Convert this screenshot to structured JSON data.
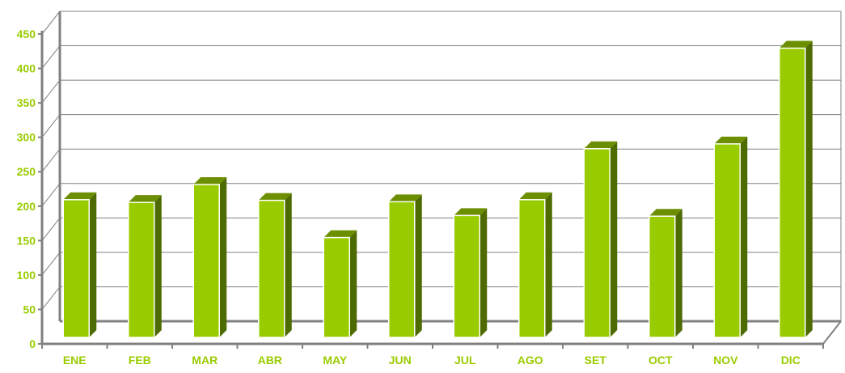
{
  "chart_data": {
    "type": "bar",
    "categories": [
      "ENE",
      "FEB",
      "MAR",
      "ABR",
      "MAY",
      "JUN",
      "JUL",
      "AGO",
      "SET",
      "OCT",
      "NOV",
      "DIC"
    ],
    "values": [
      200,
      196,
      222,
      199,
      145,
      197,
      177,
      200,
      274,
      176,
      281,
      420
    ],
    "y_ticks": [
      "0",
      "50",
      "100",
      "150",
      "200",
      "250",
      "300",
      "350",
      "400",
      "450"
    ],
    "ylim": [
      0,
      450
    ],
    "grid": true,
    "legend": "none",
    "colors": {
      "bar_front": "#99cc00",
      "bar_side": "#4d6b00",
      "bar_top": "#6b8f00",
      "tick_label": "#99cc00",
      "axis": "#808080",
      "grid": "#808080"
    }
  }
}
